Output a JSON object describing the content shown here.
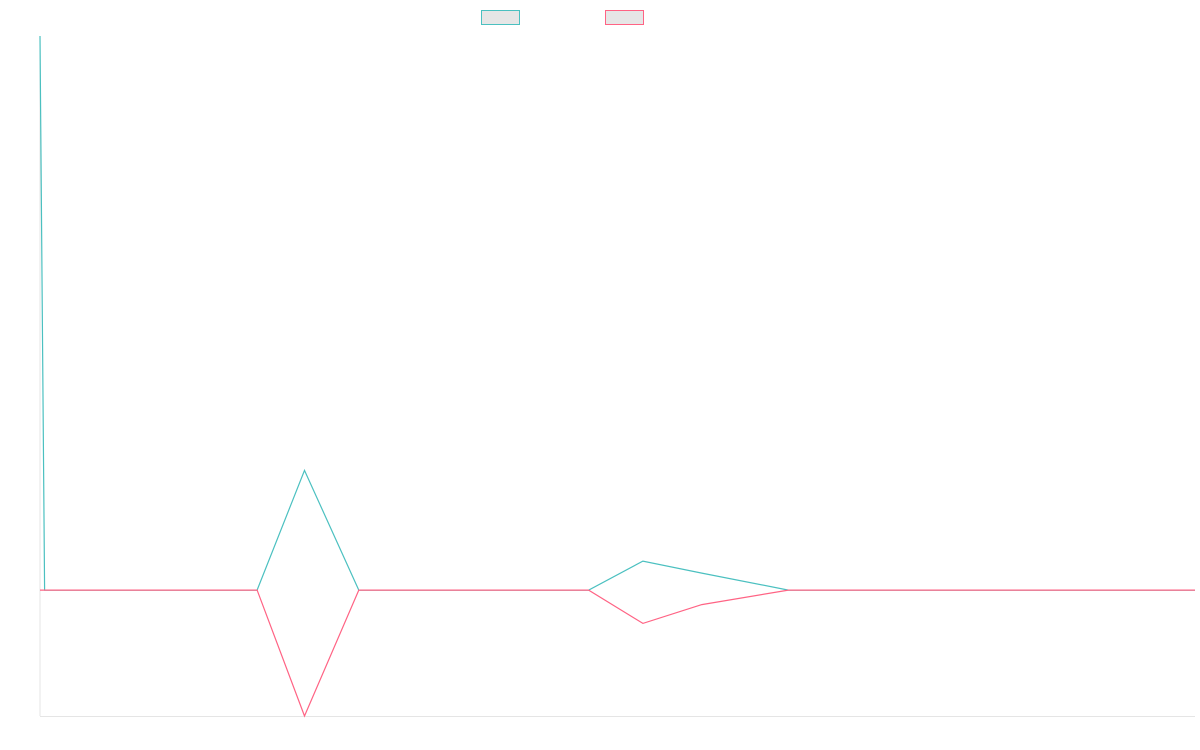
{
  "chart_data": {
    "type": "line",
    "title": "",
    "xlabel": "",
    "ylabel": "",
    "grid": false,
    "legend": "top-center",
    "xlim": [
      0,
      1000
    ],
    "ylim": [
      -20,
      88
    ],
    "x": [
      0,
      4,
      37,
      62,
      84,
      116,
      152,
      188,
      229,
      276,
      312,
      344,
      370,
      446,
      475,
      522,
      573,
      648,
      666,
      720,
      767,
      804,
      815,
      872,
      894,
      944,
      1000
    ],
    "series": [
      {
        "color": "#4bc0c0",
        "values": [
          88,
          0,
          0,
          0,
          0,
          0,
          0,
          0,
          19,
          0,
          0,
          0,
          0,
          0,
          0,
          4.6,
          2.7,
          0,
          0,
          0,
          0,
          0,
          0,
          0,
          0,
          0,
          0
        ]
      },
      {
        "color": "#ff6384",
        "values": [
          0,
          0,
          0,
          0,
          0,
          0,
          0,
          0,
          -20,
          0,
          0,
          0,
          0,
          0,
          0,
          -5.3,
          -2.3,
          0,
          0,
          0,
          0,
          0,
          0,
          0,
          0,
          0,
          0
        ]
      }
    ]
  }
}
